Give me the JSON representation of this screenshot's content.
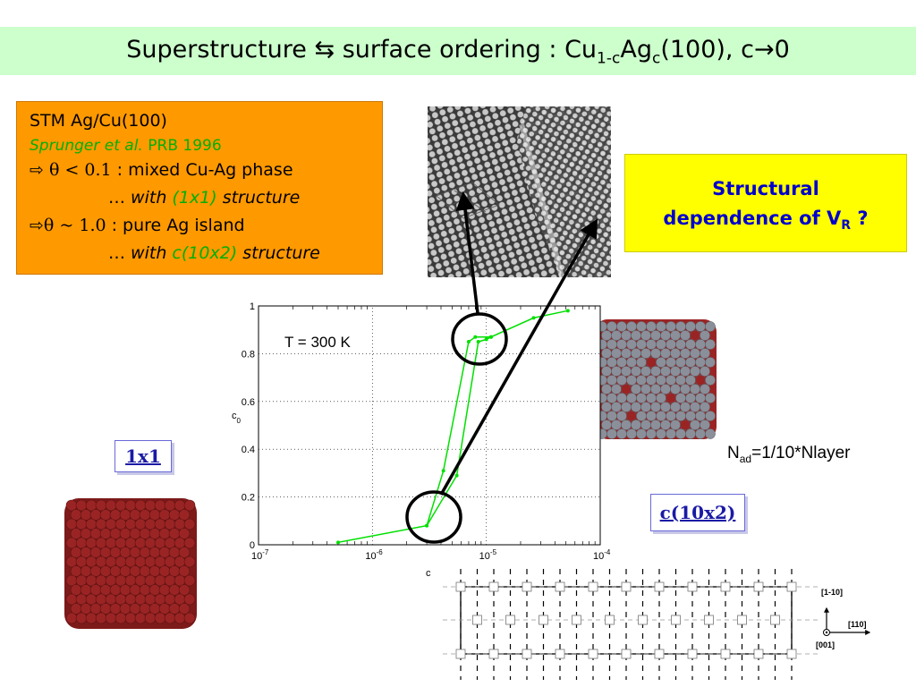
{
  "slide": {
    "title_main": "Superstructure",
    "title_arrows": "⇆",
    "title_mid": "surface ordering : Cu",
    "title_sub1": "1-c",
    "title_ag": "Ag",
    "title_sub2": "c",
    "title_end": "(100), c",
    "title_arrow": "→",
    "title_zero": "0"
  },
  "stm_box": {
    "line1": "STM Ag/Cu(100)",
    "ref_authors": "Sprunger et al.",
    "ref_journal": "PRB 1996",
    "arrow": "⇨",
    "cond1": "θ < 0.1",
    "desc1": " : mixed Cu-Ag phase",
    "ellipsis1": "… ",
    "with1": "with",
    "struct1": "(1x1)",
    "structure_word1": "structure",
    "cond2": "θ ~ 1.0",
    "desc2": " : pure Ag island",
    "ellipsis2": "… ",
    "with2": "with",
    "struct2": "c(10x2)",
    "structure_word2": "structure"
  },
  "question_box": {
    "line1": "Structural",
    "line2": "dependence of V",
    "line2_sub": "R",
    "line2_end": " ?"
  },
  "labels": {
    "one_by_one": "1x1",
    "c10x2": "c(10x2)",
    "nad_prefix": "N",
    "nad_sub": "ad",
    "nad_rest": "=1/10*Nlayer"
  },
  "diagram": {
    "dir_1m10": "[1-10]",
    "dir_110": "[110]",
    "dir_001": "[001]"
  },
  "colors": {
    "title_bg": "#ccffcc",
    "stm_bg": "#ff9900",
    "green_text": "#00b000",
    "question_bg": "#ffff00",
    "question_text": "#0000cc",
    "curve": "#00e000",
    "label_text": "#1a1aa6",
    "cu_atom": "#9a2424",
    "ag_atom": "#8a8f99"
  },
  "chart_data": {
    "type": "line",
    "annotation": "T = 300 K",
    "xlabel": "c",
    "ylabel": "c",
    "ylabel_sub": "0",
    "xscale": "log",
    "xlim": [
      1e-07,
      0.0001
    ],
    "ylim": [
      0,
      1
    ],
    "xticks": [
      "10^-7",
      "10^-6",
      "10^-5",
      "10^-4"
    ],
    "yticks": [
      "0",
      "0.2",
      "0.4",
      "0.6",
      "0.8",
      "1"
    ],
    "grid": true,
    "series": [
      {
        "x": [
          5e-07,
          3e-06,
          4.2e-06,
          7e-06,
          8e-06,
          1.1e-05,
          2.6e-05,
          5.2e-05
        ],
        "y": [
          0.01,
          0.08,
          0.31,
          0.85,
          0.87,
          0.87,
          0.95,
          0.98
        ]
      },
      {
        "x": [
          3e-06,
          5.5e-06,
          8.5e-06,
          1e-05,
          1.1e-05
        ],
        "y": [
          0.08,
          0.29,
          0.85,
          0.86,
          0.87
        ]
      }
    ]
  }
}
